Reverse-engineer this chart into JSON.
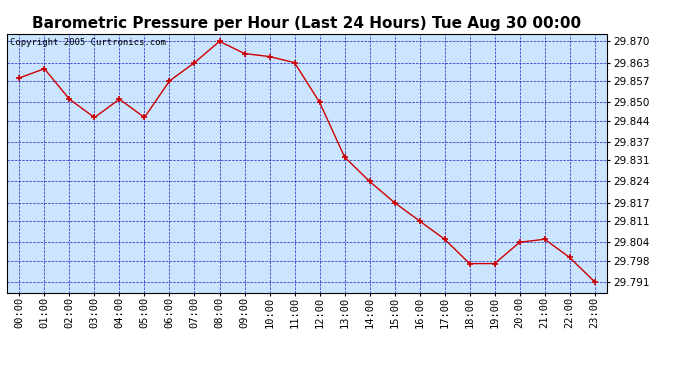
{
  "title": "Barometric Pressure per Hour (Last 24 Hours) Tue Aug 30 00:00",
  "copyright": "Copyright 2005 Curtronics.com",
  "x_labels": [
    "00:00",
    "01:00",
    "02:00",
    "03:00",
    "04:00",
    "05:00",
    "06:00",
    "07:00",
    "08:00",
    "09:00",
    "10:00",
    "11:00",
    "12:00",
    "13:00",
    "14:00",
    "15:00",
    "16:00",
    "17:00",
    "18:00",
    "19:00",
    "20:00",
    "21:00",
    "22:00",
    "23:00"
  ],
  "values": [
    29.858,
    29.861,
    29.851,
    29.845,
    29.851,
    29.845,
    29.857,
    29.863,
    29.87,
    29.866,
    29.865,
    29.863,
    29.85,
    29.832,
    29.824,
    29.817,
    29.811,
    29.805,
    29.797,
    29.797,
    29.804,
    29.805,
    29.799,
    29.791
  ],
  "y_ticks": [
    29.791,
    29.798,
    29.804,
    29.811,
    29.817,
    29.824,
    29.831,
    29.837,
    29.844,
    29.85,
    29.857,
    29.863,
    29.87
  ],
  "ylim": [
    29.7875,
    29.8725
  ],
  "xlim": [
    -0.5,
    23.5
  ],
  "line_color": "#cc0000",
  "bg_color": "#cce5ff",
  "grid_color": "#0000bb",
  "title_fontsize": 11,
  "tick_fontsize": 7.5,
  "copyright_fontsize": 6.5,
  "fig_width": 6.9,
  "fig_height": 3.75,
  "dpi": 100
}
